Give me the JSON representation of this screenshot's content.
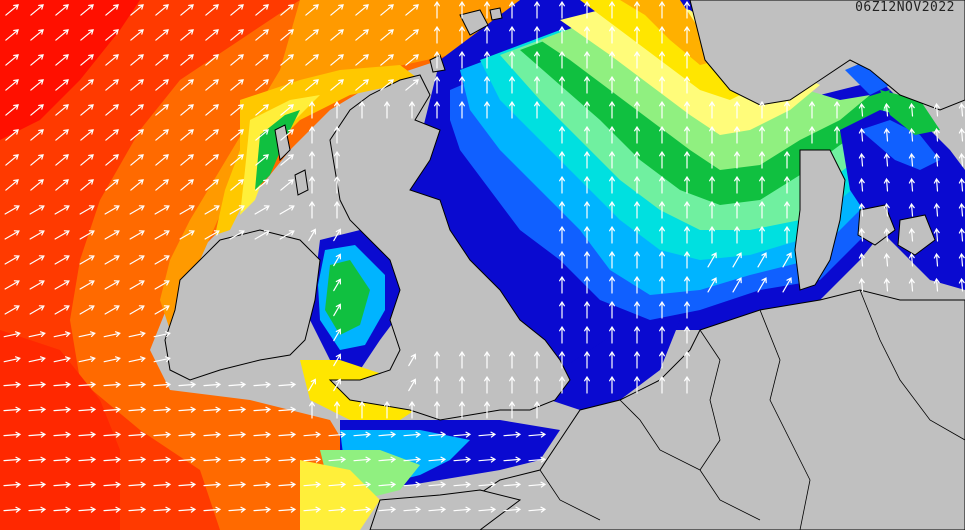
{
  "map": {
    "timestamp": "06Z12NOV2022",
    "land_color": "#c0c0c0",
    "coast_color": "#000000",
    "arrow_color": "#ffffff",
    "scale_colors": [
      "#0a0ad0",
      "#1060ff",
      "#00b4ff",
      "#00e0e0",
      "#70f0a0",
      "#10c040",
      "#90f080",
      "#fffc7a",
      "#ffe600",
      "#ffb000",
      "#ff8000",
      "#ff4000",
      "#ff1000"
    ]
  }
}
